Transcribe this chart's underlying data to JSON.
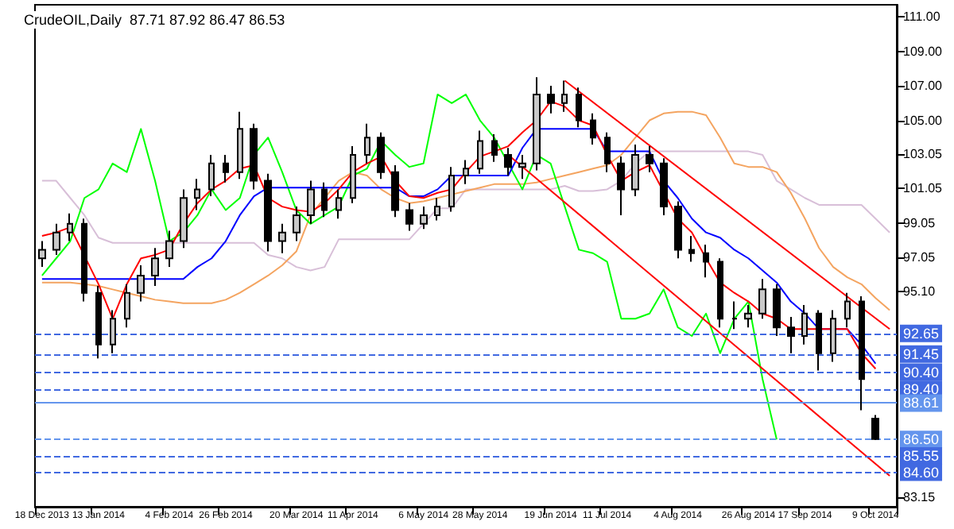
{
  "chart_data": {
    "type": "candlestick",
    "title": "CrudeOIL,Daily  87.71 87.92 86.47 86.53",
    "categories": [
      "18 Dec 2013",
      null,
      null,
      null,
      "13 Jan 2014",
      null,
      null,
      null,
      null,
      "4 Feb 2014",
      null,
      null,
      null,
      "26 Feb 2014",
      null,
      null,
      null,
      null,
      "20 Mar 2014",
      null,
      null,
      null,
      "11 Apr 2014",
      null,
      null,
      null,
      null,
      "6 May 2014",
      null,
      null,
      null,
      "28 May 2014",
      null,
      null,
      null,
      null,
      "19 Jun 2014",
      null,
      null,
      null,
      "11 Jul 2014",
      null,
      null,
      null,
      null,
      "4 Aug 2014",
      null,
      null,
      null,
      null,
      "26 Aug 2014",
      null,
      null,
      null,
      "17 Sep 2014",
      null,
      null,
      null,
      null,
      "9 Oct 2014",
      null
    ],
    "ohlc": [
      [
        97.0,
        98.0,
        96.5,
        97.5
      ],
      [
        97.5,
        99.0,
        97.2,
        98.5
      ],
      [
        98.5,
        99.6,
        98.0,
        99.0
      ],
      [
        99.0,
        99.3,
        94.5,
        95.0
      ],
      [
        95.0,
        95.4,
        91.2,
        92.0
      ],
      [
        92.0,
        94.0,
        91.5,
        93.5
      ],
      [
        93.5,
        95.5,
        93.0,
        95.0
      ],
      [
        95.0,
        96.6,
        94.5,
        96.0
      ],
      [
        96.0,
        97.6,
        95.4,
        97.0
      ],
      [
        97.0,
        98.6,
        96.5,
        98.0
      ],
      [
        98.0,
        101.0,
        97.6,
        100.5
      ],
      [
        100.5,
        101.6,
        99.8,
        101.0
      ],
      [
        101.0,
        103.0,
        100.6,
        102.5
      ],
      [
        102.5,
        103.0,
        101.4,
        102.0
      ],
      [
        102.0,
        105.5,
        101.6,
        104.5
      ],
      [
        104.5,
        104.8,
        101.0,
        101.5
      ],
      [
        101.5,
        101.9,
        97.4,
        98.0
      ],
      [
        98.0,
        99.0,
        97.3,
        98.5
      ],
      [
        98.5,
        100.0,
        98.0,
        99.5
      ],
      [
        99.5,
        101.5,
        99.0,
        101.0
      ],
      [
        101.0,
        101.4,
        99.4,
        99.8
      ],
      [
        99.8,
        101.0,
        99.3,
        100.5
      ],
      [
        100.5,
        103.5,
        100.2,
        103.0
      ],
      [
        103.0,
        104.8,
        102.5,
        104.0
      ],
      [
        104.0,
        104.3,
        101.6,
        102.0
      ],
      [
        102.0,
        102.4,
        99.4,
        99.8
      ],
      [
        99.8,
        100.2,
        98.6,
        99.0
      ],
      [
        99.0,
        100.0,
        98.7,
        99.5
      ],
      [
        99.5,
        100.5,
        99.2,
        100.0
      ],
      [
        100.0,
        102.3,
        99.7,
        101.8
      ],
      [
        101.8,
        102.7,
        101.3,
        102.2
      ],
      [
        102.2,
        104.4,
        101.9,
        103.8
      ],
      [
        103.8,
        104.2,
        102.6,
        103.0
      ],
      [
        103.0,
        103.4,
        101.8,
        102.3
      ],
      [
        102.3,
        103.0,
        101.6,
        102.5
      ],
      [
        102.5,
        107.5,
        102.1,
        106.5
      ],
      [
        106.5,
        107.0,
        105.4,
        106.0
      ],
      [
        106.0,
        107.3,
        105.5,
        106.5
      ],
      [
        106.5,
        106.9,
        104.6,
        105.0
      ],
      [
        105.0,
        105.4,
        103.6,
        104.0
      ],
      [
        104.0,
        104.3,
        102.0,
        102.5
      ],
      [
        102.5,
        102.9,
        99.5,
        101.0
      ],
      [
        101.0,
        103.6,
        100.6,
        103.0
      ],
      [
        103.0,
        103.5,
        102.0,
        102.5
      ],
      [
        102.5,
        102.8,
        99.5,
        100.0
      ],
      [
        100.0,
        100.3,
        97.0,
        97.5
      ],
      [
        97.5,
        98.3,
        96.8,
        97.3
      ],
      [
        97.3,
        97.8,
        95.9,
        96.8
      ],
      [
        96.8,
        97.0,
        93.0,
        93.5
      ],
      [
        93.5,
        94.5,
        92.9,
        93.5
      ],
      [
        93.5,
        94.3,
        93.0,
        93.8
      ],
      [
        93.8,
        95.8,
        93.5,
        95.2
      ],
      [
        95.2,
        95.5,
        92.5,
        93.0
      ],
      [
        93.0,
        93.6,
        91.5,
        92.5
      ],
      [
        92.5,
        94.3,
        92.0,
        93.8
      ],
      [
        93.8,
        94.0,
        90.5,
        91.5
      ],
      [
        91.5,
        94.0,
        91.0,
        93.5
      ],
      [
        93.5,
        95.0,
        93.0,
        94.5
      ],
      [
        94.5,
        94.8,
        88.2,
        90.0
      ],
      [
        87.71,
        87.92,
        86.47,
        86.53
      ],
      null
    ],
    "series": [
      {
        "type": "line",
        "color": "#d8bfd8",
        "values": [
          101.5,
          101.5,
          100.5,
          99.5,
          98.2,
          97.9,
          97.9,
          97.9,
          97.9,
          97.9,
          97.9,
          97.9,
          97.9,
          97.9,
          97.9,
          97.9,
          97.2,
          97.0,
          96.5,
          96.3,
          96.5,
          98.1,
          98.1,
          98.1,
          98.1,
          98.1,
          98.1,
          99.0,
          99.9,
          99.9,
          101.0,
          101.0,
          101.0,
          101.0,
          101.0,
          101.0,
          101.0,
          101.2,
          100.9,
          100.9,
          101.0,
          101.5,
          102.5,
          103.2,
          103.2,
          103.2,
          103.2,
          103.2,
          103.2,
          103.2,
          103.2,
          103.0,
          101.5,
          101.0,
          100.5,
          100.1,
          100.1,
          100.1,
          100.1,
          99.3,
          98.5
        ]
      },
      {
        "type": "line",
        "color": "#f4a460",
        "values": [
          95.6,
          95.6,
          95.6,
          95.5,
          95.4,
          95.2,
          95.0,
          94.8,
          94.6,
          94.5,
          94.4,
          94.4,
          94.4,
          94.6,
          95.0,
          95.5,
          96.0,
          96.6,
          97.4,
          99.5,
          100.5,
          101.5,
          102.0,
          101.8,
          101.0,
          100.5,
          100.2,
          100.3,
          100.5,
          100.7,
          100.9,
          101.1,
          101.3,
          101.3,
          101.3,
          101.4,
          101.6,
          101.8,
          102.0,
          102.2,
          102.4,
          103.0,
          104.0,
          105.0,
          105.4,
          105.5,
          105.5,
          105.3,
          104.0,
          102.5,
          102.3,
          102.3,
          102.0,
          100.8,
          99.3,
          97.6,
          96.5,
          95.9,
          95.5,
          94.7,
          94.0
        ]
      },
      {
        "type": "line",
        "color": "#00ff00",
        "values": [
          96.0,
          97.0,
          98.0,
          100.5,
          101.0,
          102.5,
          102.0,
          104.5,
          101.5,
          98.0,
          98.5,
          99.5,
          101.0,
          99.8,
          100.5,
          103.0,
          104.0,
          102.0,
          99.8,
          99.0,
          99.5,
          100.0,
          101.8,
          102.2,
          103.8,
          103.0,
          102.3,
          102.5,
          106.5,
          106.0,
          106.5,
          105.0,
          104.0,
          102.5,
          101.0,
          103.0,
          102.5,
          100.0,
          97.5,
          97.3,
          96.8,
          93.5,
          93.5,
          93.8,
          95.2,
          93.0,
          92.5,
          93.8,
          91.5,
          93.5,
          94.5,
          90.0,
          86.5,
          null,
          null,
          null,
          null,
          null,
          null,
          null,
          null
        ]
      },
      {
        "type": "line",
        "color": "#0000ff",
        "values": [
          95.8,
          95.8,
          95.8,
          95.8,
          95.8,
          95.8,
          95.8,
          95.8,
          95.8,
          95.8,
          95.8,
          96.5,
          97.0,
          98.0,
          99.5,
          100.6,
          101.1,
          101.1,
          101.1,
          101.1,
          101.1,
          101.1,
          101.1,
          101.1,
          101.1,
          101.1,
          100.6,
          100.6,
          101.0,
          101.8,
          101.8,
          101.8,
          101.8,
          101.8,
          103.4,
          104.5,
          104.5,
          104.5,
          104.5,
          104.5,
          103.2,
          103.2,
          103.2,
          103.2,
          101.5,
          100.5,
          99.3,
          98.5,
          98.2,
          97.5,
          97.0,
          96.3,
          95.6,
          94.5,
          93.8,
          92.9,
          null,
          92.9,
          92.0,
          90.9,
          null
        ]
      },
      {
        "type": "line",
        "color": "#ff0000",
        "values": [
          98.3,
          98.5,
          98.8,
          null,
          95.5,
          93.5,
          95.5,
          97.0,
          97.2,
          97.5,
          99.0,
          100.2,
          101.0,
          101.5,
          102.2,
          102.4,
          100.5,
          100.0,
          99.8,
          99.7,
          100.2,
          101.0,
          102.0,
          102.5,
          102.9,
          101.5,
          100.6,
          100.5,
          100.8,
          101.0,
          102.0,
          102.9,
          103.2,
          103.5,
          104.3,
          105.0,
          106.1,
          105.8,
          105.0,
          104.7,
          103.0,
          101.5,
          102.0,
          102.4,
          null,
          99.3,
          98.5,
          97.0,
          95.6,
          95.0,
          94.5,
          93.8,
          93.5,
          92.9,
          92.9,
          92.9,
          92.9,
          92.9,
          91.5,
          90.6,
          null
        ]
      },
      {
        "type": "line",
        "color": "#ff0000",
        "values": [
          null,
          null,
          null,
          null,
          null,
          null,
          null,
          null,
          null,
          null,
          null,
          null,
          null,
          null,
          null,
          null,
          null,
          null,
          null,
          null,
          null,
          null,
          null,
          null,
          null,
          null,
          null,
          null,
          null,
          null,
          null,
          null,
          null,
          null,
          null,
          null,
          null,
          107.3,
          null,
          null,
          null,
          null,
          null,
          null,
          null,
          null,
          null,
          null,
          null,
          null,
          null,
          null,
          null,
          null,
          null,
          null,
          null,
          null,
          null,
          null,
          92.9
        ]
      },
      {
        "type": "line",
        "color": "#ff0000",
        "values": [
          null,
          null,
          null,
          null,
          null,
          null,
          null,
          null,
          null,
          null,
          null,
          null,
          null,
          null,
          null,
          null,
          null,
          null,
          null,
          null,
          null,
          null,
          null,
          null,
          null,
          null,
          null,
          null,
          null,
          null,
          null,
          null,
          null,
          103.0,
          null,
          null,
          null,
          null,
          null,
          null,
          null,
          null,
          null,
          null,
          null,
          null,
          null,
          null,
          null,
          null,
          null,
          null,
          null,
          null,
          null,
          null,
          null,
          null,
          null,
          null,
          84.4
        ]
      }
    ],
    "ylim": [
      82.6,
      111.7
    ],
    "yticks": [
      {
        "value": 111,
        "label": "111.00"
      },
      {
        "value": 109,
        "label": "109.00"
      },
      {
        "value": 107,
        "label": "107.00"
      },
      {
        "value": 105,
        "label": "105.00"
      },
      {
        "value": 103.05,
        "label": "103.05"
      },
      {
        "value": 101.05,
        "label": "101.05"
      },
      {
        "value": 99.05,
        "label": "99.05"
      },
      {
        "value": 97.05,
        "label": "97.05"
      },
      {
        "value": 95.1,
        "label": "95.10"
      },
      {
        "value": 83.15,
        "label": "83.15"
      }
    ],
    "ref_lines": [
      {
        "axis": "y",
        "value": 92.65,
        "label": "92.65",
        "color": "#4169e1",
        "line_style": "dashed"
      },
      {
        "axis": "y",
        "value": 91.45,
        "label": "91.45",
        "color": "#4169e1",
        "line_style": "dashed"
      },
      {
        "axis": "y",
        "value": 90.4,
        "label": "90.40",
        "color": "#4169e1",
        "line_style": "dashed"
      },
      {
        "axis": "y",
        "value": 89.4,
        "label": "89.40",
        "color": "#4169e1",
        "line_style": "dashed"
      },
      {
        "axis": "y",
        "value": 88.61,
        "label": "88.61",
        "color": "#6495ed",
        "line_style": "solid"
      },
      {
        "axis": "y",
        "value": 86.5,
        "label": "86.50",
        "color": "#6495ed",
        "line_style": "dashed"
      },
      {
        "axis": "y",
        "value": 85.55,
        "label": "85.55",
        "color": "#4169e1",
        "line_style": "dashed"
      },
      {
        "axis": "y",
        "value": 84.6,
        "label": "84.60",
        "color": "#4169e1",
        "line_style": "dashed"
      }
    ],
    "grid": false
  }
}
